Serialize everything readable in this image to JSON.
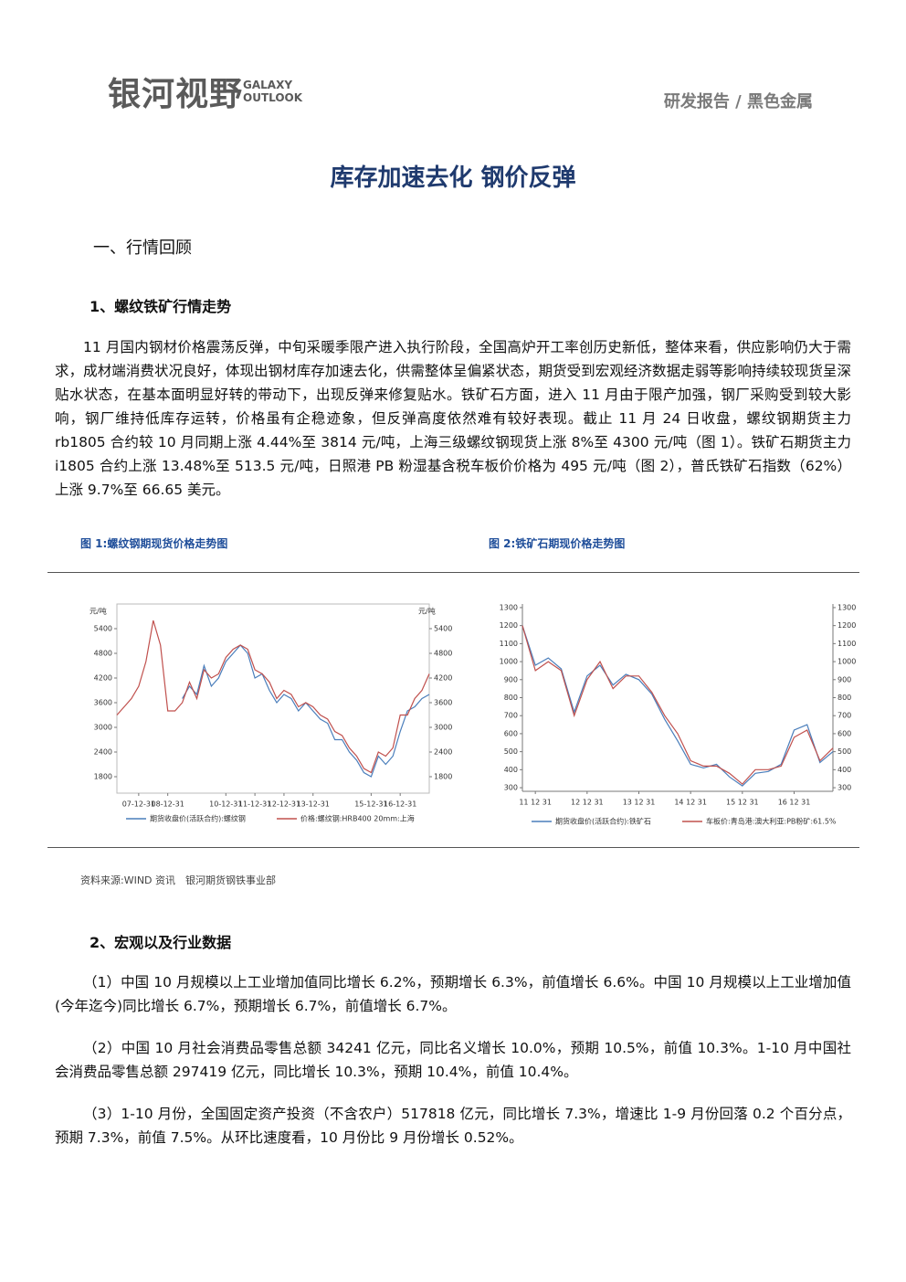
{
  "header": {
    "logo": "银河视野",
    "logo_en": [
      "GALAXY",
      "OUTLOOK"
    ],
    "category": "研发报告 / 黑色金属"
  },
  "title": "库存加速去化 钢价反弹",
  "section1": {
    "heading": "一、行情回顾",
    "subheading": "1、螺纹铁矿行情走势",
    "paragraph": "11 月国内钢材价格震荡反弹，中旬采暖季限产进入执行阶段，全国高炉开工率创历史新低，整体来看，供应影响仍大于需求，成材端消费状况良好，体现出钢材库存加速去化，供需整体呈偏紧状态，期货受到宏观经济数据走弱等影响持续较现货呈深贴水状态，在基本面明显好转的带动下，出现反弹来修复贴水。铁矿石方面，进入 11 月由于限产加强，钢厂采购受到较大影响，钢厂维持低库存运转，价格虽有企稳迹象，但反弹高度依然难有较好表现。截止 11 月 24 日收盘，螺纹钢期货主力 rb1805 合约较 10 月同期上涨 4.44%至 3814 元/吨，上海三级螺纹钢现货上涨 8%至 4300 元/吨（图 1）。铁矿石期货主力 i1805 合约上涨 13.48%至 513.5 元/吨，日照港 PB 粉湿基含税车板价价格为 495 元/吨（图 2），普氏铁矿石指数（62%）上涨 9.7%至 66.65 美元。"
  },
  "chart_data": [
    {
      "type": "line",
      "title": "图 1:螺纹钢期现货价格走势图",
      "y_unit": "元/吨",
      "y2_unit": "元/吨",
      "frame": true,
      "grid": false,
      "categories": [
        null,
        null,
        null,
        "07-12-31",
        null,
        null,
        null,
        "08-12-31",
        null,
        null,
        null,
        null,
        null,
        null,
        null,
        "10-12-31",
        null,
        null,
        null,
        "11-12-31",
        null,
        null,
        null,
        "12-12-31",
        null,
        null,
        null,
        "13-12-31",
        null,
        null,
        null,
        null,
        null,
        null,
        null,
        "15-12-31",
        null,
        null,
        null,
        "16-12-31",
        null,
        null,
        null,
        null
      ],
      "series": [
        {
          "name": "期货收盘价(活跃合约):螺纹钢",
          "color": "#4a7ebb",
          "values": [
            null,
            null,
            null,
            null,
            null,
            null,
            null,
            null,
            null,
            3700,
            4000,
            3800,
            4500,
            4000,
            4200,
            4600,
            4800,
            5000,
            4800,
            4200,
            4300,
            3900,
            3600,
            3800,
            3700,
            3400,
            3600,
            3400,
            3200,
            3100,
            2700,
            2700,
            2400,
            2200,
            1900,
            1800,
            2300,
            2100,
            2300,
            2900,
            3400,
            3500,
            3700,
            3800
          ]
        },
        {
          "name": "价格:螺纹钢:HRB400 20mm:上海",
          "color": "#c0504d",
          "values": [
            3300,
            3500,
            3700,
            4000,
            4600,
            5600,
            5000,
            3400,
            3400,
            3600,
            4100,
            3700,
            4400,
            4200,
            4300,
            4700,
            4900,
            5000,
            4900,
            4400,
            4300,
            4100,
            3700,
            3900,
            3800,
            3500,
            3600,
            3500,
            3300,
            3200,
            2900,
            2800,
            2500,
            2300,
            2000,
            1900,
            2400,
            2300,
            2500,
            3300,
            3300,
            3700,
            3900,
            4300
          ]
        }
      ],
      "ylim": [
        1400,
        6000
      ],
      "yticks": [
        1800,
        2400,
        3000,
        3600,
        4200,
        4800,
        5400
      ],
      "y2lim": [
        1400,
        6000
      ],
      "y2ticks": [
        1800,
        2400,
        3000,
        3600,
        4200,
        4800,
        5400
      ]
    },
    {
      "type": "line",
      "title": "图 2:铁矿石期现价格走势图",
      "frame": false,
      "grid": false,
      "categories": [
        null,
        "11 12 31",
        null,
        null,
        null,
        "12 12 31",
        null,
        null,
        null,
        "13 12 31",
        null,
        null,
        null,
        "14 12 31",
        null,
        null,
        null,
        "15 12 31",
        null,
        null,
        null,
        "16 12 31",
        null,
        null,
        null
      ],
      "series": [
        {
          "name": "期货收盘价(活跃合约):铁矿石",
          "color": "#4a7ebb",
          "values": [
            1200,
            980,
            1020,
            960,
            720,
            920,
            980,
            870,
            930,
            900,
            820,
            680,
            560,
            430,
            410,
            430,
            360,
            310,
            380,
            390,
            430,
            620,
            650,
            440,
            500
          ]
        },
        {
          "name": "车板价:青岛港:澳大利亚:PB粉矿:61.5%",
          "color": "#c0504d",
          "values": [
            1200,
            950,
            1000,
            950,
            700,
            900,
            1000,
            850,
            920,
            920,
            830,
            700,
            600,
            450,
            420,
            420,
            380,
            320,
            400,
            400,
            420,
            580,
            620,
            450,
            520
          ]
        }
      ],
      "ylim": [
        280,
        1320
      ],
      "yticks": [
        300,
        400,
        500,
        600,
        700,
        800,
        900,
        1000,
        1100,
        1200,
        1300
      ],
      "y2lim": [
        280,
        1320
      ],
      "y2ticks": [
        300,
        400,
        500,
        600,
        700,
        800,
        900,
        1000,
        1100,
        1200,
        1300
      ]
    }
  ],
  "source": "资料来源:WIND 资讯　银河期货钢铁事业部",
  "section2": {
    "subheading": "2、宏观以及行业数据",
    "paragraphs": [
      "（1）中国 10 月规模以上工业增加值同比增长 6.2%，预期增长 6.3%，前值增长 6.6%。中国 10 月规模以上工业增加值(今年迄今)同比增长 6.7%，预期增长 6.7%，前值增长 6.7%。",
      "（2）中国 10 月社会消费品零售总额 34241 亿元，同比名义增长 10.0%，预期 10.5%，前值 10.3%。1-10 月中国社会消费品零售总额 297419 亿元，同比增长 10.3%，预期 10.4%，前值 10.4%。",
      "（3）1-10 月份，全国固定资产投资（不含农户）517818 亿元，同比增长 7.3%，增速比 1-9 月份回落 0.2 个百分点，预期 7.3%，前值 7.5%。从环比速度看，10 月份比 9 月份增长 0.52%。"
    ]
  }
}
